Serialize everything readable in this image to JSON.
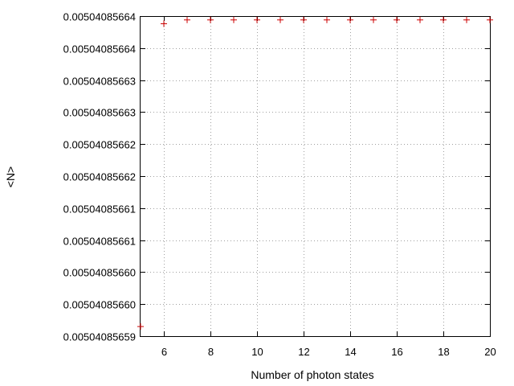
{
  "chart_data": {
    "type": "scatter",
    "title": "",
    "xlabel": "Number of photon states",
    "ylabel": "<N>",
    "xlim": [
      5,
      20
    ],
    "ylim": [
      0.00504085659,
      0.00504085664
    ],
    "grid": true,
    "x_ticks": [
      6,
      8,
      10,
      12,
      14,
      16,
      18,
      20
    ],
    "x_tick_labels": [
      "6",
      "8",
      "10",
      "12",
      "14",
      "16",
      "18",
      "20"
    ],
    "y_ticks": [
      0.00504085659,
      0.005040856595,
      0.0050408566,
      0.005040856605,
      0.00504085661,
      0.005040856615,
      0.00504085662,
      0.005040856625,
      0.00504085663,
      0.005040856635,
      0.00504085664
    ],
    "y_tick_labels": [
      "0.00504085659",
      "0.00504085660",
      "0.00504085660",
      "0.00504085661",
      "0.00504085661",
      "0.00504085662",
      "0.00504085662",
      "0.00504085663",
      "0.00504085663",
      "0.00504085664",
      "0.00504085664"
    ],
    "series": [
      {
        "color": "#cc0000",
        "marker": "plus",
        "x": [
          5,
          6,
          7,
          8,
          9,
          10,
          11,
          12,
          13,
          14,
          15,
          16,
          17,
          18,
          19,
          20
        ],
        "y": [
          0.0050408565915,
          0.0050408566388,
          0.0050408566394,
          0.0050408566394,
          0.0050408566394,
          0.0050408566394,
          0.0050408566394,
          0.0050408566394,
          0.0050408566394,
          0.0050408566394,
          0.0050408566394,
          0.0050408566394,
          0.0050408566394,
          0.0050408566394,
          0.0050408566394,
          0.0050408566394
        ]
      }
    ]
  }
}
